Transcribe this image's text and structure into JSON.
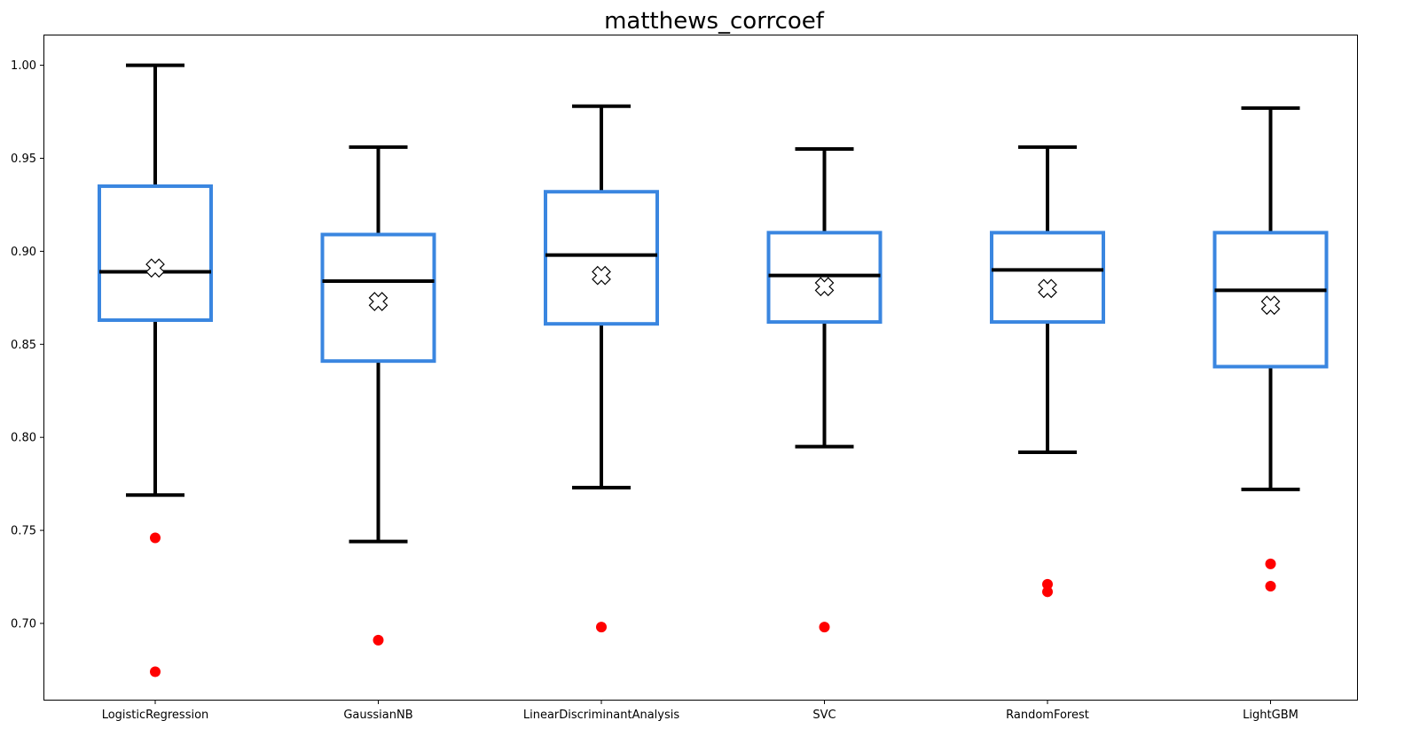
{
  "chart_data": {
    "type": "box",
    "title": "matthews_corrcoef",
    "xlabel": "",
    "ylabel": "",
    "ylim": [
      0.659,
      1.016
    ],
    "yticks": [
      0.7,
      0.75,
      0.8,
      0.85,
      0.9,
      0.95,
      1.0
    ],
    "ytick_labels": [
      "0.70",
      "0.75",
      "0.80",
      "0.85",
      "0.90",
      "0.95",
      "1.00"
    ],
    "grid": false,
    "legend": "none",
    "categories": [
      "LogisticRegression",
      "GaussianNB",
      "LinearDiscriminantAnalysis",
      "SVC",
      "RandomForest",
      "LightGBM"
    ],
    "boxes": [
      {
        "label": "LogisticRegression",
        "whisker_low": 0.769,
        "q1": 0.863,
        "median": 0.889,
        "q3": 0.935,
        "whisker_high": 1.0,
        "mean": 0.891,
        "outliers": [
          0.746,
          0.674
        ]
      },
      {
        "label": "GaussianNB",
        "whisker_low": 0.744,
        "q1": 0.841,
        "median": 0.884,
        "q3": 0.909,
        "whisker_high": 0.956,
        "mean": 0.873,
        "outliers": [
          0.691
        ]
      },
      {
        "label": "LinearDiscriminantAnalysis",
        "whisker_low": 0.773,
        "q1": 0.861,
        "median": 0.898,
        "q3": 0.932,
        "whisker_high": 0.978,
        "mean": 0.887,
        "outliers": [
          0.698
        ]
      },
      {
        "label": "SVC",
        "whisker_low": 0.795,
        "q1": 0.862,
        "median": 0.887,
        "q3": 0.91,
        "whisker_high": 0.955,
        "mean": 0.881,
        "outliers": [
          0.698
        ]
      },
      {
        "label": "RandomForest",
        "whisker_low": 0.792,
        "q1": 0.862,
        "median": 0.89,
        "q3": 0.91,
        "whisker_high": 0.956,
        "mean": 0.88,
        "outliers": [
          0.721,
          0.717
        ]
      },
      {
        "label": "LightGBM",
        "whisker_low": 0.772,
        "q1": 0.838,
        "median": 0.879,
        "q3": 0.91,
        "whisker_high": 0.977,
        "mean": 0.871,
        "outliers": [
          0.732,
          0.72
        ]
      }
    ],
    "colors": {
      "box": "#3a86e0",
      "whisker": "#000000",
      "median": "#000000",
      "outlier": "#ff0000",
      "mean_fill": "#ffffff",
      "mean_edge": "#000000"
    }
  }
}
